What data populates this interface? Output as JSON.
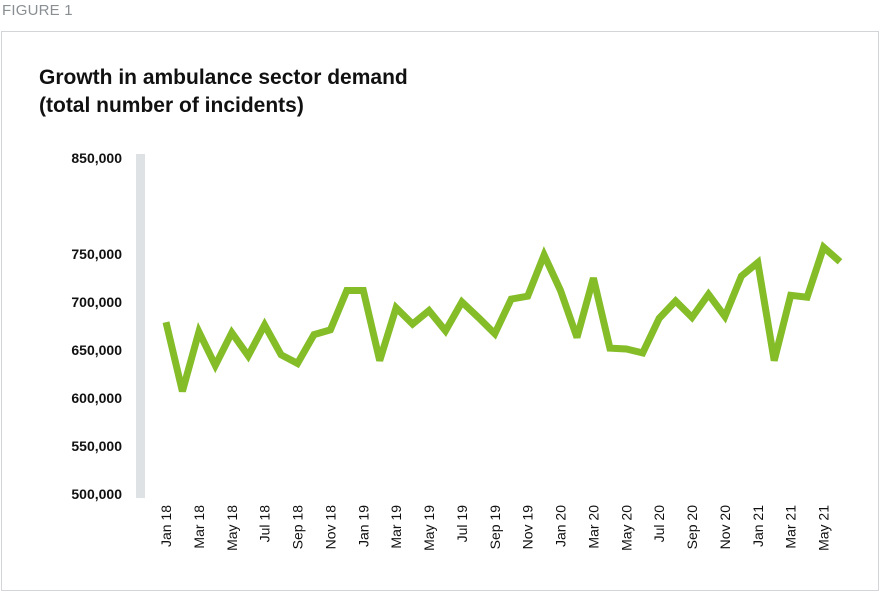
{
  "figure_label": "FIGURE 1",
  "chart_data": {
    "type": "line",
    "title_lines": [
      "Growth in ambulance sector demand",
      "(total number of incidents)"
    ],
    "xlabel": "",
    "ylabel": "",
    "ylim": [
      500000,
      850000
    ],
    "yticks": [
      {
        "value": 500000,
        "label": "500,000"
      },
      {
        "value": 550000,
        "label": "550,000"
      },
      {
        "value": 600000,
        "label": "600,000"
      },
      {
        "value": 650000,
        "label": "650,000"
      },
      {
        "value": 700000,
        "label": "700,000"
      },
      {
        "value": 750000,
        "label": "750,000"
      },
      {
        "value": 850000,
        "label": "850,000"
      }
    ],
    "tick_labels": [
      "Jan 18",
      "Mar 18",
      "May 18",
      "Jul 18",
      "Sep 18",
      "Nov 18",
      "Jan 19",
      "Mar 19",
      "May 19",
      "Jul 19",
      "Sep 19",
      "Nov 19",
      "Jan 20",
      "Mar 20",
      "May 20",
      "Jul 20",
      "Sep 20",
      "Nov 20",
      "Jan 21",
      "Mar 21",
      "May 21"
    ],
    "grid": false,
    "line_color": "#84bd27",
    "axis_color": "#dfe2e4",
    "categories": [
      "Jan 18",
      "Feb 18",
      "Mar 18",
      "Apr 18",
      "May 18",
      "Jun 18",
      "Jul 18",
      "Aug 18",
      "Sep 18",
      "Oct 18",
      "Nov 18",
      "Dec 18",
      "Jan 19",
      "Feb 19",
      "Mar 19",
      "Apr 19",
      "May 19",
      "Jun 19",
      "Jul 19",
      "Aug 19",
      "Sep 19",
      "Oct 19",
      "Nov 19",
      "Dec 19",
      "Jan 20",
      "Feb 20",
      "Mar 20",
      "Apr 20",
      "May 20",
      "Jun 20",
      "Jul 20",
      "Aug 20",
      "Sep 20",
      "Oct 20",
      "Nov 20",
      "Dec 20",
      "Jan 21",
      "Feb 21",
      "Mar 21",
      "Apr 21",
      "May 21",
      "Jun 21"
    ],
    "values": [
      679000,
      607000,
      669000,
      634000,
      668000,
      644000,
      676000,
      645000,
      636000,
      666000,
      671000,
      712000,
      712000,
      639000,
      694000,
      677000,
      691000,
      670000,
      700000,
      684000,
      667000,
      703000,
      706000,
      749000,
      712000,
      663000,
      725000,
      652000,
      651000,
      647000,
      683000,
      701000,
      684000,
      708000,
      685000,
      727000,
      741000,
      639000,
      707000,
      705000,
      757000,
      742000
    ]
  }
}
